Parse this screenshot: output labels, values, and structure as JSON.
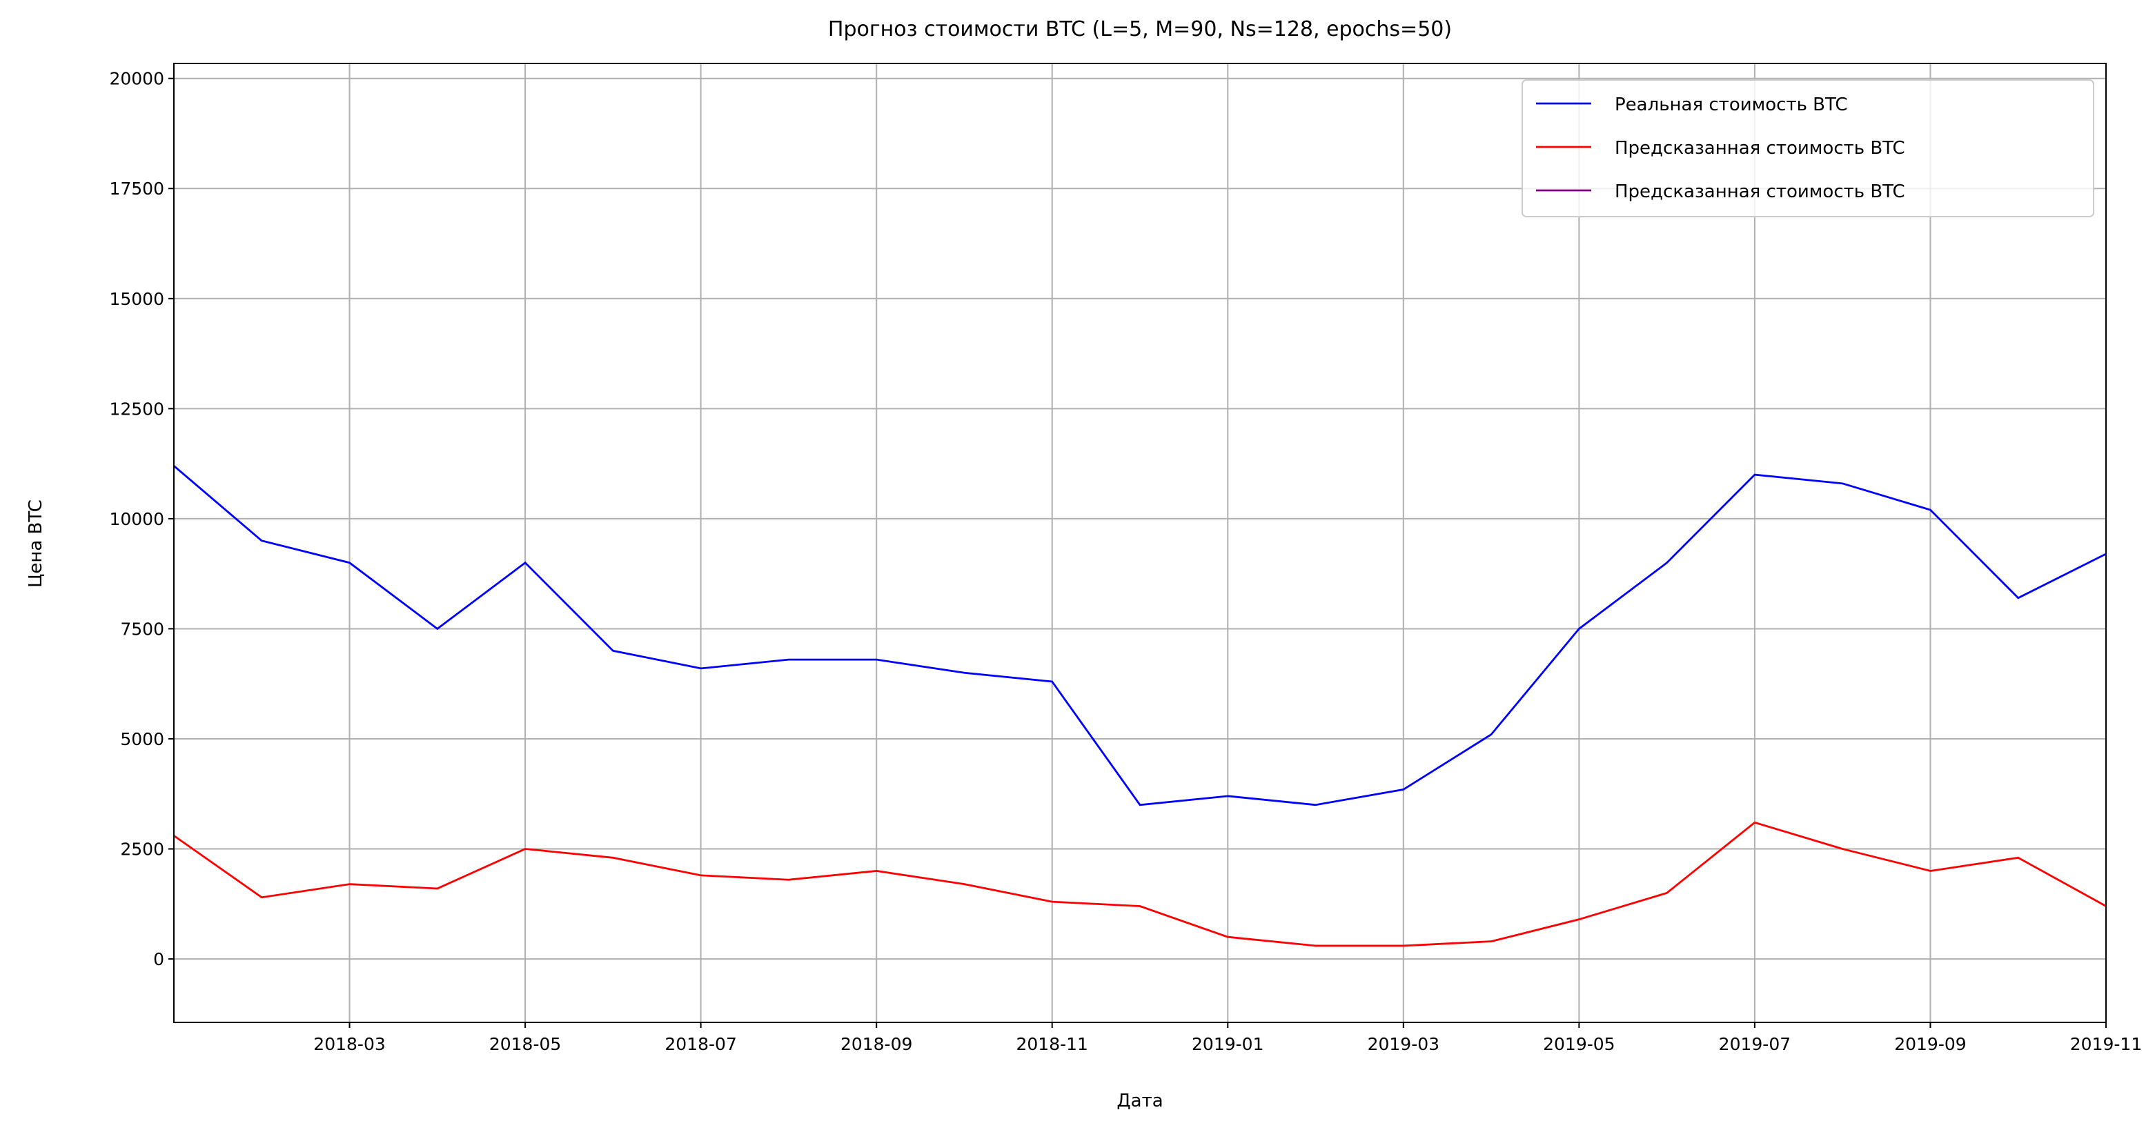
{
  "chart_data": {
    "type": "line",
    "title": "Прогноз стоимости BTC (L=5, M=90, Ns=128, epochs=50)",
    "x_label": "Дата",
    "y_label": "Цена BTC",
    "x": [
      "2018-01",
      "2018-02",
      "2018-03",
      "2018-04",
      "2018-05",
      "2018-06",
      "2018-07",
      "2018-08",
      "2018-09",
      "2018-10",
      "2018-11",
      "2018-12",
      "2019-01",
      "2019-02",
      "2019-03",
      "2019-04",
      "2019-05",
      "2019-06",
      "2019-07",
      "2019-08",
      "2019-09",
      "2019-10",
      "2019-11"
    ],
    "xlim": [
      "2018-01",
      "2019-11"
    ],
    "xticks": [
      "2018-03",
      "2018-05",
      "2018-07",
      "2018-09",
      "2018-11",
      "2019-01",
      "2019-03",
      "2019-05",
      "2019-07",
      "2019-09",
      "2019-11"
    ],
    "ylim": [
      -1440,
      20340
    ],
    "yticks": [
      0,
      2500,
      5000,
      7500,
      10000,
      12500,
      15000,
      17500,
      20000
    ],
    "grid": true,
    "legend": "upper right",
    "series": [
      {
        "name": "Реальная стоимость BTC",
        "color": "#0000ff",
        "values": [
          11200,
          9500,
          9000,
          7500,
          9000,
          7000,
          6600,
          6800,
          6800,
          6500,
          6300,
          3500,
          3700,
          3500,
          3850,
          5100,
          7500,
          9000,
          11000,
          10800,
          10200,
          8200,
          9200
        ]
      },
      {
        "name": "Предсказанная стоимость BTC",
        "color": "#ff0000",
        "values": [
          2800,
          1400,
          1700,
          1600,
          2500,
          2300,
          1900,
          1800,
          2000,
          1700,
          1300,
          1200,
          500,
          300,
          300,
          400,
          900,
          1500,
          3100,
          2500,
          2000,
          2300,
          1200
        ]
      },
      {
        "name": "Предсказанная стоимость BTC",
        "color": "#800080",
        "values": [
          null,
          null,
          null,
          null,
          null,
          null,
          null,
          null,
          null,
          null,
          null,
          null,
          null,
          null,
          null,
          null,
          null,
          null,
          null,
          null,
          null,
          null,
          null
        ]
      }
    ]
  }
}
